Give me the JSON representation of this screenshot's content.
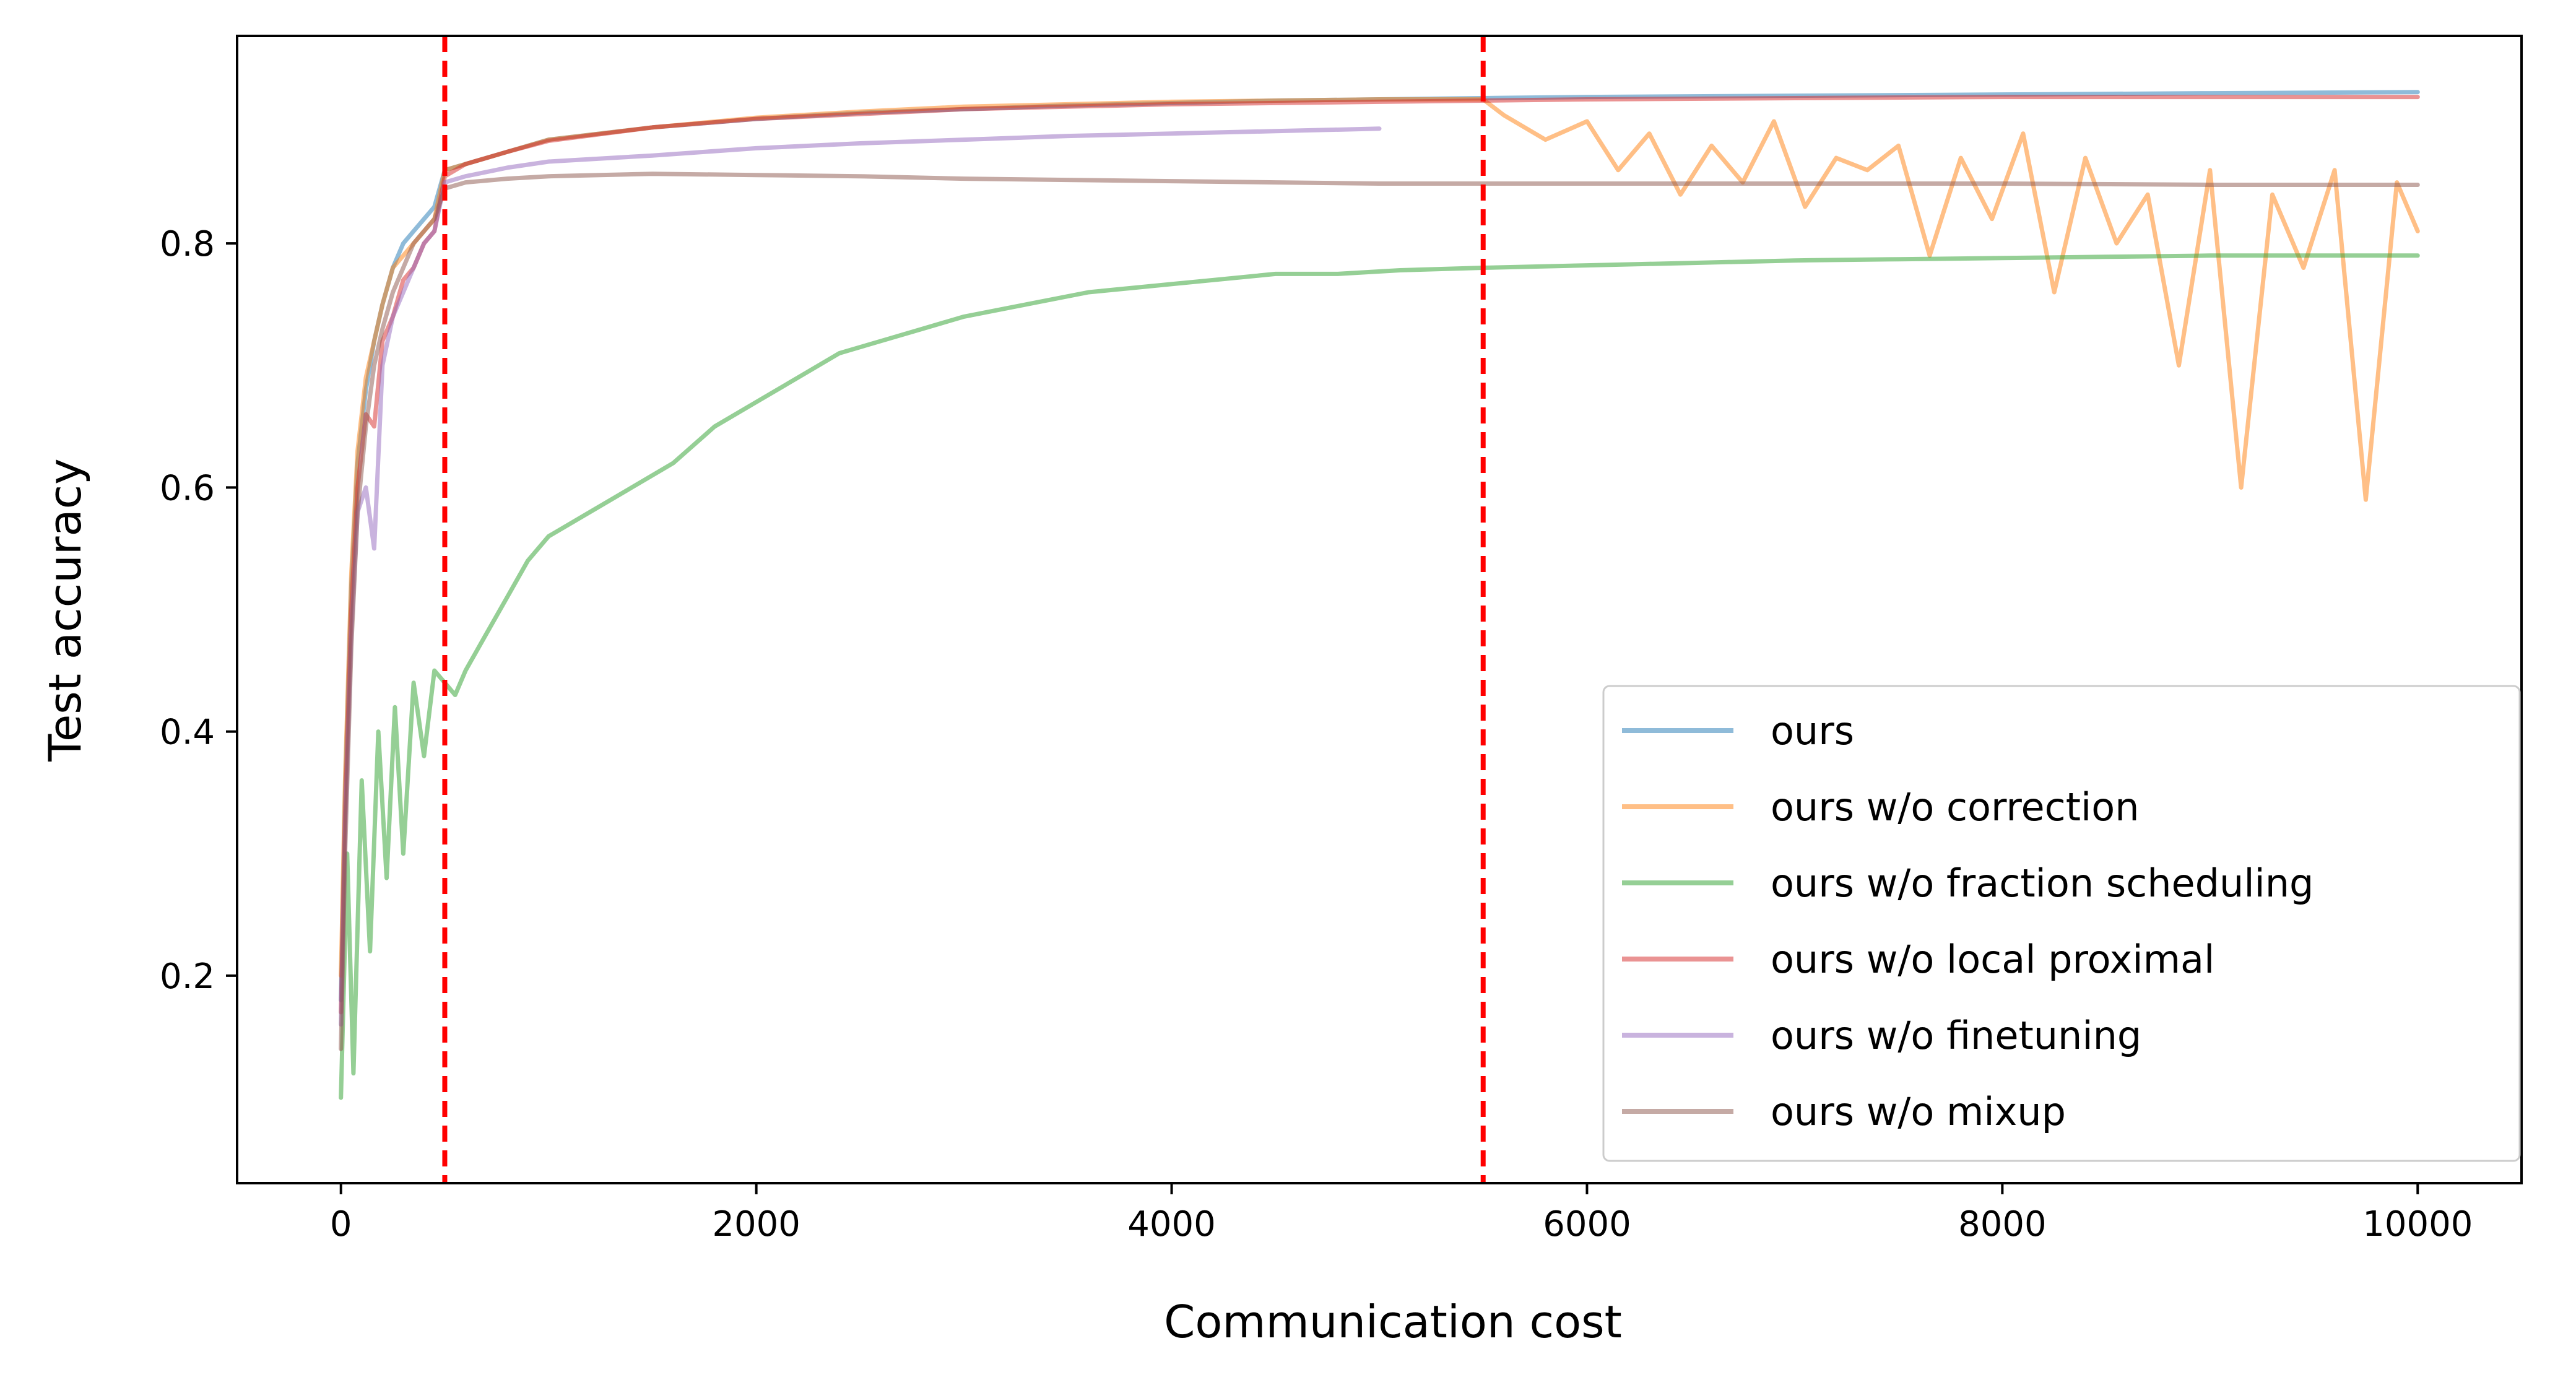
{
  "chart_data": {
    "type": "line",
    "title": "",
    "xlabel": "Communication cost",
    "ylabel": "Test accuracy",
    "xlim": [
      -500,
      10500
    ],
    "ylim": [
      0.03,
      0.97
    ],
    "xticks": [
      0,
      2000,
      4000,
      6000,
      8000,
      10000
    ],
    "xtick_labels": [
      "0",
      "2000",
      "4000",
      "6000",
      "8000",
      "10000"
    ],
    "yticks": [
      0.2,
      0.4,
      0.6,
      0.8
    ],
    "ytick_labels": [
      "0.2",
      "0.4",
      "0.6",
      "0.8"
    ],
    "legend_position": "lower-right",
    "vertical_lines": [
      {
        "x": 500,
        "color": "#ff0000",
        "style": "dashed"
      },
      {
        "x": 5500,
        "color": "#ff0000",
        "style": "dashed"
      }
    ],
    "series": [
      {
        "name": "ours",
        "color": "#1f77b4",
        "x": [
          0,
          20,
          50,
          80,
          120,
          160,
          200,
          250,
          300,
          350,
          400,
          450,
          500,
          600,
          800,
          1000,
          1500,
          2000,
          2500,
          3000,
          3500,
          4000,
          4500,
          5000,
          5500,
          6000,
          7000,
          8000,
          9000,
          10000
        ],
        "y": [
          0.18,
          0.35,
          0.52,
          0.62,
          0.68,
          0.72,
          0.75,
          0.78,
          0.8,
          0.81,
          0.82,
          0.83,
          0.86,
          0.865,
          0.875,
          0.885,
          0.895,
          0.902,
          0.907,
          0.91,
          0.913,
          0.915,
          0.917,
          0.918,
          0.919,
          0.92,
          0.921,
          0.922,
          0.923,
          0.924
        ]
      },
      {
        "name": "ours w/o correction",
        "color": "#ff7f0e",
        "x": [
          0,
          20,
          50,
          80,
          120,
          160,
          200,
          250,
          300,
          350,
          400,
          450,
          500,
          600,
          800,
          1000,
          1500,
          2000,
          2500,
          3000,
          3500,
          4000,
          4500,
          5000,
          5500,
          5600,
          5800,
          6000,
          6150,
          6300,
          6450,
          6600,
          6750,
          6900,
          7050,
          7200,
          7350,
          7500,
          7650,
          7800,
          7950,
          8100,
          8250,
          8400,
          8550,
          8700,
          8850,
          9000,
          9150,
          9300,
          9450,
          9600,
          9750,
          9900,
          10000
        ],
        "y": [
          0.2,
          0.36,
          0.53,
          0.63,
          0.69,
          0.72,
          0.75,
          0.78,
          0.79,
          0.8,
          0.81,
          0.82,
          0.86,
          0.865,
          0.875,
          0.885,
          0.895,
          0.903,
          0.908,
          0.912,
          0.914,
          0.916,
          0.917,
          0.918,
          0.918,
          0.905,
          0.885,
          0.9,
          0.86,
          0.89,
          0.84,
          0.88,
          0.85,
          0.9,
          0.83,
          0.87,
          0.86,
          0.88,
          0.79,
          0.87,
          0.82,
          0.89,
          0.76,
          0.87,
          0.8,
          0.84,
          0.7,
          0.86,
          0.6,
          0.84,
          0.78,
          0.86,
          0.59,
          0.85,
          0.81
        ]
      },
      {
        "name": "ours w/o fraction scheduling",
        "color": "#2ca02c",
        "x": [
          0,
          30,
          60,
          100,
          140,
          180,
          220,
          260,
          300,
          350,
          400,
          450,
          500,
          550,
          600,
          700,
          800,
          900,
          1000,
          1200,
          1400,
          1600,
          1800,
          2000,
          2200,
          2400,
          2600,
          2800,
          3000,
          3300,
          3600,
          3900,
          4200,
          4500,
          4800,
          5100,
          5500,
          6000,
          6500,
          7000,
          7500,
          8000,
          8500,
          9000,
          9500,
          10000
        ],
        "y": [
          0.1,
          0.3,
          0.12,
          0.36,
          0.22,
          0.4,
          0.28,
          0.42,
          0.3,
          0.44,
          0.38,
          0.45,
          0.44,
          0.43,
          0.45,
          0.48,
          0.51,
          0.54,
          0.56,
          0.58,
          0.6,
          0.62,
          0.65,
          0.67,
          0.69,
          0.71,
          0.72,
          0.73,
          0.74,
          0.75,
          0.76,
          0.765,
          0.77,
          0.775,
          0.775,
          0.778,
          0.78,
          0.782,
          0.784,
          0.786,
          0.787,
          0.788,
          0.789,
          0.79,
          0.79,
          0.79
        ]
      },
      {
        "name": "ours w/o local proximal",
        "color": "#d62728",
        "x": [
          0,
          20,
          50,
          80,
          120,
          160,
          200,
          250,
          300,
          350,
          400,
          450,
          500,
          600,
          800,
          1000,
          1500,
          2000,
          2500,
          3000,
          3500,
          4000,
          4500,
          5000,
          5500,
          6000,
          7000,
          8000,
          9000,
          10000
        ],
        "y": [
          0.17,
          0.33,
          0.5,
          0.6,
          0.66,
          0.65,
          0.72,
          0.74,
          0.77,
          0.78,
          0.8,
          0.81,
          0.855,
          0.865,
          0.875,
          0.884,
          0.895,
          0.902,
          0.906,
          0.91,
          0.912,
          0.914,
          0.915,
          0.916,
          0.917,
          0.918,
          0.919,
          0.92,
          0.92,
          0.92
        ]
      },
      {
        "name": "ours w/o finetuning",
        "color": "#9467bd",
        "x": [
          0,
          20,
          50,
          80,
          120,
          160,
          200,
          250,
          300,
          350,
          400,
          450,
          500,
          600,
          800,
          1000,
          1500,
          2000,
          2500,
          3000,
          3500,
          4000,
          4500,
          5000
        ],
        "y": [
          0.16,
          0.32,
          0.48,
          0.58,
          0.6,
          0.55,
          0.7,
          0.74,
          0.76,
          0.78,
          0.8,
          0.81,
          0.85,
          0.855,
          0.862,
          0.867,
          0.872,
          0.878,
          0.882,
          0.885,
          0.888,
          0.89,
          0.892,
          0.894
        ]
      },
      {
        "name": "ours w/o mixup",
        "color": "#8c564b",
        "x": [
          0,
          20,
          50,
          80,
          120,
          160,
          200,
          250,
          300,
          350,
          400,
          450,
          500,
          600,
          800,
          1000,
          1500,
          2000,
          2500,
          3000,
          3500,
          4000,
          4500,
          5000,
          5500,
          6000,
          7000,
          8000,
          9000,
          10000
        ],
        "y": [
          0.14,
          0.3,
          0.47,
          0.58,
          0.65,
          0.7,
          0.73,
          0.76,
          0.78,
          0.8,
          0.81,
          0.82,
          0.845,
          0.85,
          0.853,
          0.855,
          0.857,
          0.856,
          0.855,
          0.853,
          0.852,
          0.851,
          0.85,
          0.849,
          0.849,
          0.849,
          0.849,
          0.849,
          0.848,
          0.848
        ]
      }
    ]
  }
}
